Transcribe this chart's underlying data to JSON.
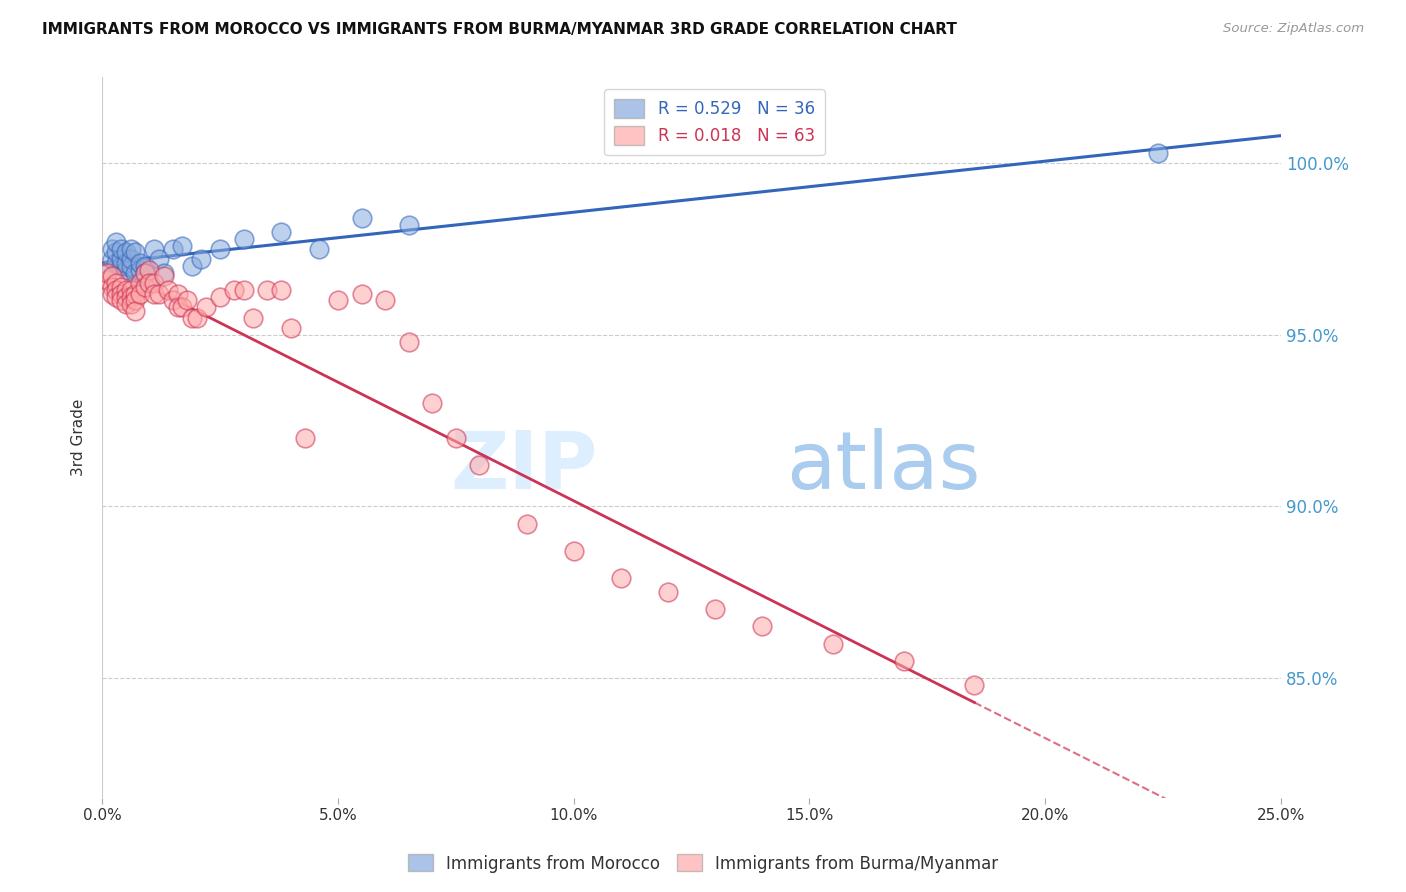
{
  "title": "IMMIGRANTS FROM MOROCCO VS IMMIGRANTS FROM BURMA/MYANMAR 3RD GRADE CORRELATION CHART",
  "source": "Source: ZipAtlas.com",
  "ylabel": "3rd Grade",
  "ytick_labels": [
    "100.0%",
    "95.0%",
    "90.0%",
    "85.0%"
  ],
  "ytick_values": [
    1.0,
    0.95,
    0.9,
    0.85
  ],
  "xlim": [
    0.0,
    0.25
  ],
  "ylim": [
    0.815,
    1.025
  ],
  "legend1_R": "0.529",
  "legend1_N": "36",
  "legend2_R": "0.018",
  "legend2_N": "63",
  "blue_color": "#88AADD",
  "pink_color": "#FFAAAA",
  "blue_line_color": "#3366BB",
  "pink_line_color": "#CC3355",
  "watermark_zip_color": "#DDEEFF",
  "watermark_atlas_color": "#AACCEE",
  "blue_scatter_x": [
    0.001,
    0.002,
    0.002,
    0.003,
    0.003,
    0.003,
    0.004,
    0.004,
    0.004,
    0.005,
    0.005,
    0.005,
    0.006,
    0.006,
    0.006,
    0.007,
    0.007,
    0.008,
    0.008,
    0.009,
    0.009,
    0.01,
    0.011,
    0.012,
    0.013,
    0.015,
    0.017,
    0.019,
    0.021,
    0.025,
    0.03,
    0.038,
    0.046,
    0.055,
    0.065,
    0.224
  ],
  "blue_scatter_y": [
    0.969,
    0.972,
    0.975,
    0.971,
    0.974,
    0.977,
    0.97,
    0.972,
    0.975,
    0.969,
    0.971,
    0.974,
    0.97,
    0.972,
    0.975,
    0.968,
    0.974,
    0.969,
    0.971,
    0.97,
    0.968,
    0.965,
    0.975,
    0.972,
    0.968,
    0.975,
    0.976,
    0.97,
    0.972,
    0.975,
    0.978,
    0.98,
    0.975,
    0.984,
    0.982,
    1.003
  ],
  "pink_scatter_x": [
    0.001,
    0.001,
    0.002,
    0.002,
    0.002,
    0.003,
    0.003,
    0.003,
    0.004,
    0.004,
    0.004,
    0.005,
    0.005,
    0.005,
    0.006,
    0.006,
    0.006,
    0.007,
    0.007,
    0.007,
    0.008,
    0.008,
    0.009,
    0.009,
    0.01,
    0.01,
    0.011,
    0.011,
    0.012,
    0.013,
    0.014,
    0.015,
    0.016,
    0.016,
    0.017,
    0.018,
    0.019,
    0.02,
    0.022,
    0.025,
    0.028,
    0.03,
    0.032,
    0.035,
    0.038,
    0.04,
    0.043,
    0.05,
    0.055,
    0.06,
    0.065,
    0.07,
    0.075,
    0.08,
    0.09,
    0.1,
    0.11,
    0.12,
    0.13,
    0.14,
    0.155,
    0.17,
    0.185
  ],
  "pink_scatter_y": [
    0.966,
    0.968,
    0.967,
    0.964,
    0.962,
    0.965,
    0.963,
    0.961,
    0.964,
    0.962,
    0.96,
    0.963,
    0.961,
    0.959,
    0.963,
    0.961,
    0.959,
    0.962,
    0.96,
    0.957,
    0.965,
    0.962,
    0.968,
    0.964,
    0.969,
    0.965,
    0.965,
    0.962,
    0.962,
    0.967,
    0.963,
    0.96,
    0.962,
    0.958,
    0.958,
    0.96,
    0.955,
    0.955,
    0.958,
    0.961,
    0.963,
    0.963,
    0.955,
    0.963,
    0.963,
    0.952,
    0.92,
    0.96,
    0.962,
    0.96,
    0.948,
    0.93,
    0.92,
    0.912,
    0.895,
    0.887,
    0.879,
    0.875,
    0.87,
    0.865,
    0.86,
    0.855,
    0.848
  ],
  "xtick_positions": [
    0.0,
    0.05,
    0.1,
    0.15,
    0.2,
    0.25
  ],
  "xtick_labels": [
    "0.0%",
    "5.0%",
    "10.0%",
    "15.0%",
    "20.0%",
    "25.0%"
  ]
}
